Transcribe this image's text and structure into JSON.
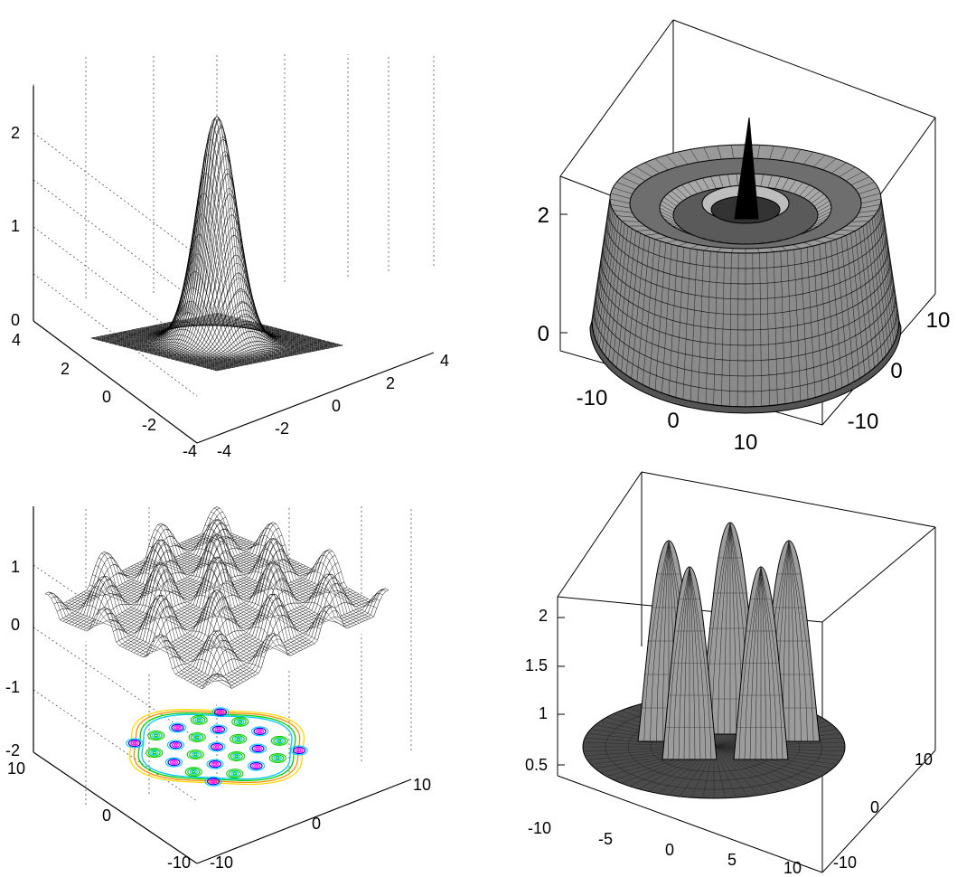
{
  "chart_data": [
    {
      "id": "gaussian-peak",
      "type": "surface3d",
      "grid": true,
      "box": false,
      "xlim": [
        -4,
        4
      ],
      "ylim": [
        -4,
        4
      ],
      "zlim": [
        0,
        2.5
      ],
      "x_ticks": [
        "-4",
        "-2",
        "0",
        "2",
        "4"
      ],
      "y_ticks": [
        "-4",
        "-2",
        "0",
        "2",
        "4"
      ],
      "z_ticks": [
        "0",
        "1",
        "2"
      ],
      "peak": 2.4,
      "surface_color": "#000000"
    },
    {
      "id": "concentric-rings",
      "type": "surface3d",
      "grid": false,
      "box": true,
      "xlim": [
        -15,
        15
      ],
      "ylim": [
        -15,
        15
      ],
      "zlim": [
        0,
        3
      ],
      "x_ticks": [
        "-10",
        "0",
        "10"
      ],
      "y_ticks": [
        "-10",
        "0",
        "10"
      ],
      "z_ticks": [
        "0",
        "2"
      ],
      "surface_color": "#000000"
    },
    {
      "id": "peaks-with-contour",
      "type": "surface3d",
      "grid": true,
      "box": false,
      "xlim": [
        -10,
        10
      ],
      "ylim": [
        -10,
        10
      ],
      "zlim": [
        -2,
        1.5
      ],
      "x_ticks": [
        "-10",
        "0",
        "10"
      ],
      "y_ticks": [
        "-10",
        "0",
        "10"
      ],
      "z_ticks": [
        "-2",
        "-1",
        "0",
        "1"
      ],
      "contour_colors": [
        "#ff00ff",
        "#0000ff",
        "#00c8ff",
        "#00d000",
        "#ffd700",
        "#ff8c00"
      ],
      "surface_color": "#000000"
    },
    {
      "id": "radial-lobes",
      "type": "surface3d",
      "grid": false,
      "box": true,
      "xlim": [
        -10,
        10
      ],
      "ylim": [
        -10,
        10
      ],
      "zlim": [
        0,
        2.3
      ],
      "x_ticks": [
        "-10",
        "-5",
        "0",
        "5",
        "10"
      ],
      "y_ticks": [
        "-10",
        "0",
        "10"
      ],
      "z_ticks": [
        "0.5",
        "1",
        "1.5",
        "2"
      ],
      "surface_color": "#000000"
    }
  ]
}
